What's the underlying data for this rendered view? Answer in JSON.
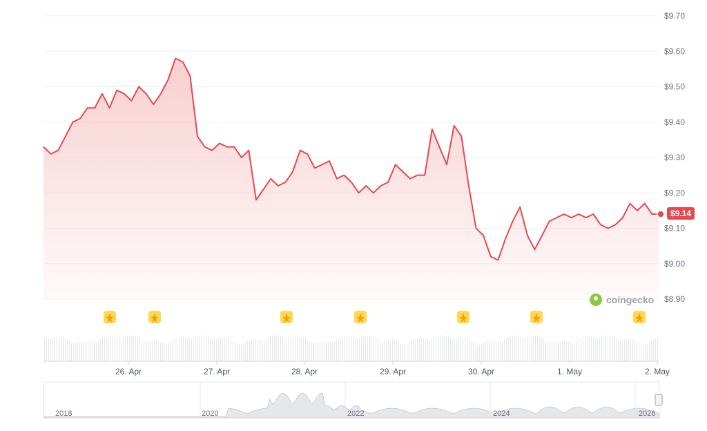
{
  "current_price_label": "$9.14",
  "brand": {
    "name": "coingecko",
    "logo_icon": "coingecko-gecko-icon"
  },
  "colors": {
    "line": "#e5484d",
    "fill": "#f7c6c7",
    "marker": "#ffd84d",
    "grid": "#eef0f3"
  },
  "event_markers": {
    "icon": "event-star-icon",
    "count": 7
  },
  "navigator": {
    "year_labels": [
      "2018",
      "2020",
      "2022",
      "2024",
      "2026"
    ]
  },
  "chart_data": {
    "type": "area",
    "title": "",
    "xlabel": "",
    "ylabel": "",
    "ylim": [
      8.9,
      9.7
    ],
    "y_ticks": [
      "$9.70",
      "$9.60",
      "$9.50",
      "$9.40",
      "$9.30",
      "$9.20",
      "$9.10",
      "$9.00",
      "$8.90"
    ],
    "x_ticks": [
      "26. Apr",
      "27. Apr",
      "28. Apr",
      "29. Apr",
      "30. Apr",
      "1. May",
      "2. May"
    ],
    "grid": true,
    "x_start": "2026-04-25 01:00",
    "x_end": "2026-05-02 01:00",
    "series": [
      {
        "points": [
          [
            "2026-04-25 01:00",
            9.33
          ],
          [
            "2026-04-25 03:00",
            9.31
          ],
          [
            "2026-04-25 05:00",
            9.32
          ],
          [
            "2026-04-25 07:00",
            9.36
          ],
          [
            "2026-04-25 09:00",
            9.4
          ],
          [
            "2026-04-25 11:00",
            9.41
          ],
          [
            "2026-04-25 13:00",
            9.44
          ],
          [
            "2026-04-25 15:00",
            9.44
          ],
          [
            "2026-04-25 17:00",
            9.48
          ],
          [
            "2026-04-25 19:00",
            9.44
          ],
          [
            "2026-04-25 21:00",
            9.49
          ],
          [
            "2026-04-25 23:00",
            9.48
          ],
          [
            "2026-04-26 01:00",
            9.46
          ],
          [
            "2026-04-26 03:00",
            9.5
          ],
          [
            "2026-04-26 05:00",
            9.48
          ],
          [
            "2026-04-26 07:00",
            9.45
          ],
          [
            "2026-04-26 09:00",
            9.48
          ],
          [
            "2026-04-26 11:00",
            9.52
          ],
          [
            "2026-04-26 13:00",
            9.58
          ],
          [
            "2026-04-26 15:00",
            9.57
          ],
          [
            "2026-04-26 17:00",
            9.53
          ],
          [
            "2026-04-26 19:00",
            9.36
          ],
          [
            "2026-04-26 21:00",
            9.33
          ],
          [
            "2026-04-26 23:00",
            9.32
          ],
          [
            "2026-04-27 01:00",
            9.34
          ],
          [
            "2026-04-27 03:00",
            9.33
          ],
          [
            "2026-04-27 05:00",
            9.33
          ],
          [
            "2026-04-27 07:00",
            9.3
          ],
          [
            "2026-04-27 09:00",
            9.32
          ],
          [
            "2026-04-27 11:00",
            9.18
          ],
          [
            "2026-04-27 13:00",
            9.21
          ],
          [
            "2026-04-27 15:00",
            9.24
          ],
          [
            "2026-04-27 17:00",
            9.22
          ],
          [
            "2026-04-27 19:00",
            9.23
          ],
          [
            "2026-04-27 21:00",
            9.26
          ],
          [
            "2026-04-27 23:00",
            9.32
          ],
          [
            "2026-04-28 01:00",
            9.31
          ],
          [
            "2026-04-28 03:00",
            9.27
          ],
          [
            "2026-04-28 05:00",
            9.28
          ],
          [
            "2026-04-28 07:00",
            9.29
          ],
          [
            "2026-04-28 09:00",
            9.24
          ],
          [
            "2026-04-28 11:00",
            9.25
          ],
          [
            "2026-04-28 13:00",
            9.23
          ],
          [
            "2026-04-28 15:00",
            9.2
          ],
          [
            "2026-04-28 17:00",
            9.22
          ],
          [
            "2026-04-28 19:00",
            9.2
          ],
          [
            "2026-04-28 21:00",
            9.22
          ],
          [
            "2026-04-28 23:00",
            9.23
          ],
          [
            "2026-04-29 01:00",
            9.28
          ],
          [
            "2026-04-29 03:00",
            9.26
          ],
          [
            "2026-04-29 05:00",
            9.24
          ],
          [
            "2026-04-29 07:00",
            9.25
          ],
          [
            "2026-04-29 09:00",
            9.25
          ],
          [
            "2026-04-29 11:00",
            9.38
          ],
          [
            "2026-04-29 13:00",
            9.33
          ],
          [
            "2026-04-29 15:00",
            9.28
          ],
          [
            "2026-04-29 17:00",
            9.39
          ],
          [
            "2026-04-29 19:00",
            9.36
          ],
          [
            "2026-04-29 21:00",
            9.22
          ],
          [
            "2026-04-29 23:00",
            9.1
          ],
          [
            "2026-04-30 01:00",
            9.08
          ],
          [
            "2026-04-30 03:00",
            9.02
          ],
          [
            "2026-04-30 05:00",
            9.01
          ],
          [
            "2026-04-30 07:00",
            9.07
          ],
          [
            "2026-04-30 09:00",
            9.12
          ],
          [
            "2026-04-30 11:00",
            9.16
          ],
          [
            "2026-04-30 13:00",
            9.08
          ],
          [
            "2026-04-30 15:00",
            9.04
          ],
          [
            "2026-04-30 17:00",
            9.08
          ],
          [
            "2026-04-30 19:00",
            9.12
          ],
          [
            "2026-04-30 21:00",
            9.13
          ],
          [
            "2026-04-30 23:00",
            9.14
          ],
          [
            "2026-05-01 01:00",
            9.13
          ],
          [
            "2026-05-01 03:00",
            9.14
          ],
          [
            "2026-05-01 05:00",
            9.13
          ],
          [
            "2026-05-01 07:00",
            9.14
          ],
          [
            "2026-05-01 09:00",
            9.11
          ],
          [
            "2026-05-01 11:00",
            9.1
          ],
          [
            "2026-05-01 13:00",
            9.11
          ],
          [
            "2026-05-01 15:00",
            9.13
          ],
          [
            "2026-05-01 17:00",
            9.17
          ],
          [
            "2026-05-01 19:00",
            9.15
          ],
          [
            "2026-05-01 21:00",
            9.17
          ],
          [
            "2026-05-01 23:00",
            9.14
          ],
          [
            "2026-05-02 01:00",
            9.14
          ]
        ]
      }
    ]
  }
}
